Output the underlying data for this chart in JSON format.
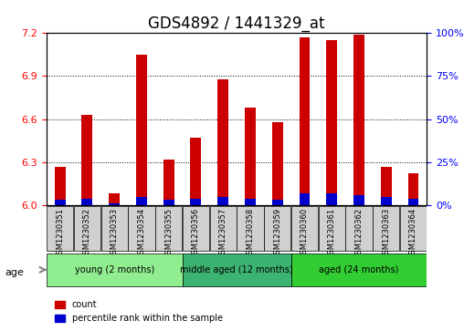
{
  "title": "GDS4892 / 1441329_at",
  "samples": [
    "GSM1230351",
    "GSM1230352",
    "GSM1230353",
    "GSM1230354",
    "GSM1230355",
    "GSM1230356",
    "GSM1230357",
    "GSM1230358",
    "GSM1230359",
    "GSM1230360",
    "GSM1230361",
    "GSM1230362",
    "GSM1230363",
    "GSM1230364"
  ],
  "count_values": [
    6.27,
    6.63,
    6.08,
    7.05,
    6.32,
    6.47,
    6.88,
    6.68,
    6.58,
    7.17,
    7.15,
    7.19,
    6.27,
    6.22
  ],
  "percentile_values": [
    3,
    4,
    1,
    5,
    3,
    4,
    5,
    4,
    3,
    7,
    7,
    6,
    5,
    4
  ],
  "ylim_left": [
    6.0,
    7.2
  ],
  "ylim_right": [
    0,
    100
  ],
  "yticks_left": [
    6.0,
    6.3,
    6.6,
    6.9,
    7.2
  ],
  "yticks_right": [
    0,
    25,
    50,
    75,
    100
  ],
  "ytick_labels_right": [
    "0%",
    "25%",
    "50%",
    "75%",
    "100%"
  ],
  "groups": [
    {
      "label": "young (2 months)",
      "start": 0,
      "end": 5,
      "color": "#90EE90"
    },
    {
      "label": "middle aged (12 months)",
      "start": 5,
      "end": 9,
      "color": "#3CB371"
    },
    {
      "label": "aged (24 months)",
      "start": 9,
      "end": 14,
      "color": "#32CD32"
    }
  ],
  "bar_color_red": "#CC0000",
  "bar_color_blue": "#0000CC",
  "bar_width": 0.4,
  "background_plot": "#ffffff",
  "background_xtick": "#d0d0d0",
  "title_fontsize": 12,
  "tick_fontsize": 8,
  "label_fontsize": 8,
  "grid_color": "#000000",
  "base_value": 6.0,
  "percentile_scale_max": 100,
  "age_label": "age"
}
